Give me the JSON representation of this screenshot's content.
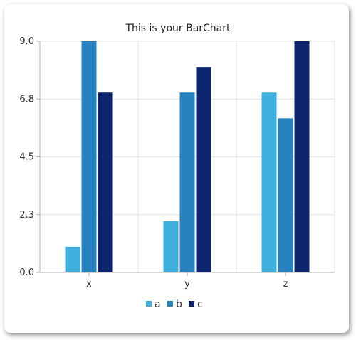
{
  "chart_data": {
    "type": "bar",
    "title": "This is your BarChart",
    "xlabel": "",
    "ylabel": "",
    "categories": [
      "x",
      "y",
      "z"
    ],
    "series": [
      {
        "name": "a",
        "values": [
          1,
          2,
          7
        ],
        "color": "#3fb0dd"
      },
      {
        "name": "b",
        "values": [
          9,
          7,
          6
        ],
        "color": "#2683c0"
      },
      {
        "name": "c",
        "values": [
          7,
          8,
          9
        ],
        "color": "#0e2570"
      }
    ],
    "ylim": [
      0,
      9
    ],
    "yticks": [
      "0.0",
      "2.3",
      "4.5",
      "6.8",
      "9.0"
    ],
    "grid": true,
    "legend_position": "bottom"
  }
}
